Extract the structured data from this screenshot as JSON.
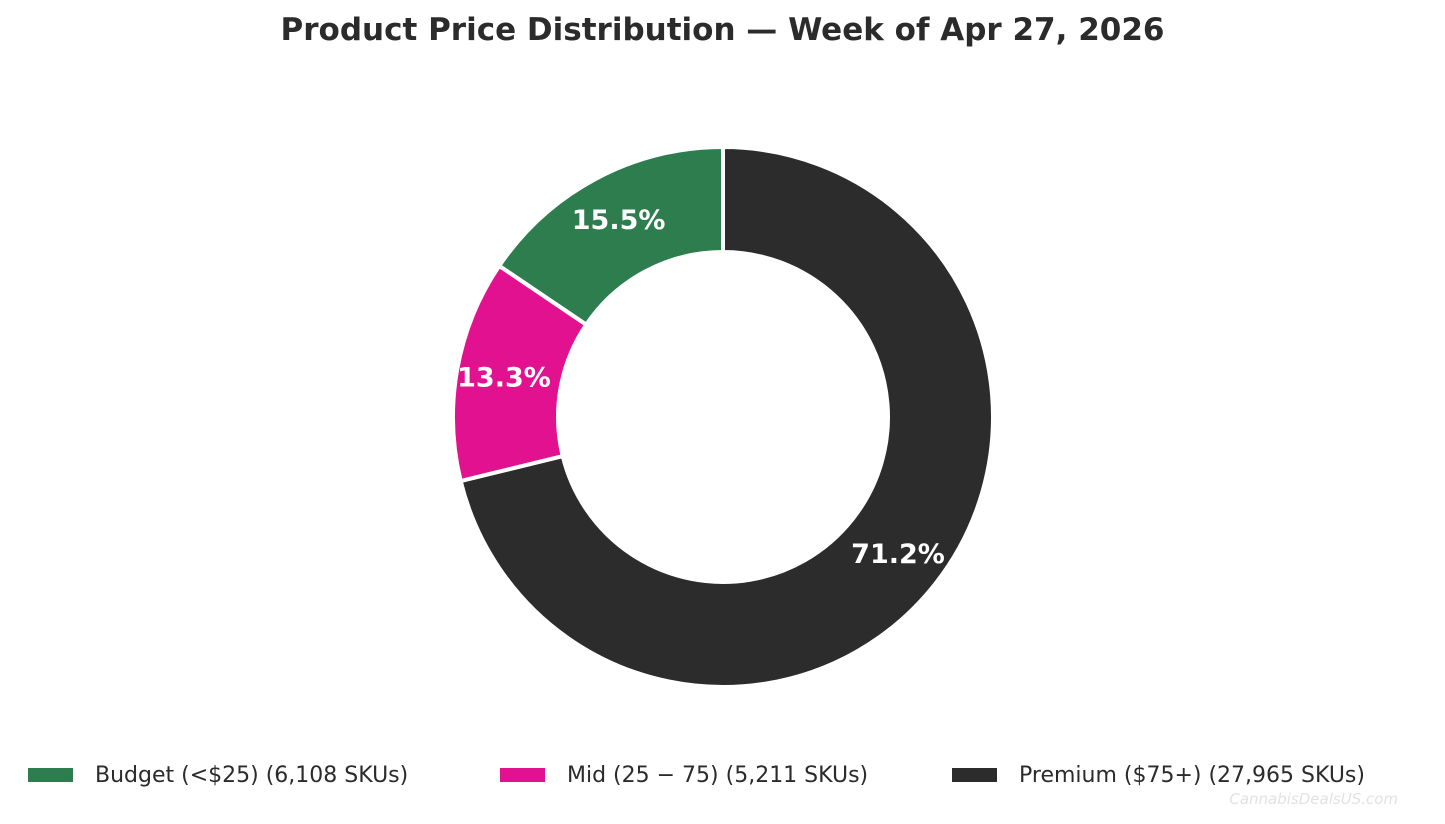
{
  "chart_data": {
    "type": "pie",
    "variant": "donut",
    "title": "Product Price Distribution — Week of Apr 27, 2026",
    "slices": [
      {
        "label": "Budget (<$25)  (6,108 SKUs)",
        "value": 6108,
        "percent_label": "15.5%",
        "color": "#2e7d4f"
      },
      {
        "label": "Mid (25 − 75)  (5,211 SKUs)",
        "value": 5211,
        "percent_label": "13.3%",
        "color": "#e11190"
      },
      {
        "label": "Premium ($75+)  (27,965 SKUs)",
        "value": 27965,
        "percent_label": "71.2%",
        "color": "#2c2c2c"
      }
    ],
    "start_angle": "top",
    "direction": "counterclockwise",
    "legend_position": "bottom"
  },
  "watermark": "CannabisDealsUS.com"
}
